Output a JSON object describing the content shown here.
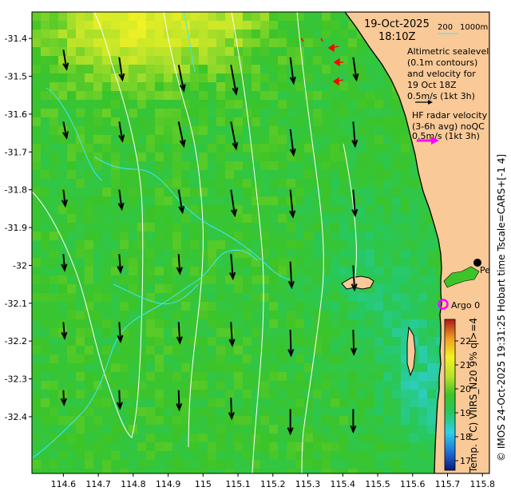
{
  "header": {
    "date": "19-Oct-2025",
    "time": "18:10Z",
    "scale_left": "200",
    "scale_right": "1000m"
  },
  "annotations": {
    "altimetric": [
      "Altimetric sealevel",
      "(0.1m contours)",
      "and velocity for",
      "19 Oct 18Z",
      "0.5m/s (1kt 3h)"
    ],
    "hf_radar": [
      "HF radar velocity",
      "(3-6h avg) noQC",
      "0.5m/s (1kt 3h)"
    ]
  },
  "places": {
    "city": "Perth",
    "argo": "Argo 0"
  },
  "side_caption": "© IMOS 24-Oct-2025 19:31:25 Hobart time Tscale=CARS+[-1 4]",
  "colorbar": {
    "label": "Temp. (°C) VIIRS_N20 9% ql>=4",
    "ticks": [
      "17",
      "18",
      "19",
      "20",
      "21",
      "22"
    ],
    "vmin": 16.6,
    "vmax": 22.9
  },
  "axes": {
    "x_ticks": [
      "114.6",
      "114.7",
      "114.8",
      "114.9",
      "115",
      "115.1",
      "115.2",
      "115.3",
      "115.4",
      "115.5",
      "115.6",
      "115.7",
      "115.8"
    ],
    "y_ticks": [
      "-31.4",
      "-31.5",
      "-31.6",
      "-31.7",
      "-31.8",
      "-31.9",
      "-32",
      "-32.1",
      "-32.2",
      "-32.3",
      "-32.4"
    ],
    "lon_range": [
      114.51,
      115.82
    ],
    "lat_range": [
      -32.55,
      -31.33
    ]
  },
  "colors": {
    "land": "#f9c997",
    "contour": "#ffffff",
    "isobath": "#3ee8ff",
    "hf_arrow": "#ff00ff",
    "argo": "#ff00ff",
    "wind_arrow": "#ff0000"
  },
  "velocity_arrows": [
    {
      "lon": 114.6,
      "lat": -31.43,
      "u": 0.05,
      "v": -0.3
    },
    {
      "lon": 114.76,
      "lat": -31.45,
      "u": 0.05,
      "v": -0.35
    },
    {
      "lon": 114.93,
      "lat": -31.47,
      "u": 0.08,
      "v": -0.4
    },
    {
      "lon": 115.08,
      "lat": -31.47,
      "u": 0.08,
      "v": -0.45
    },
    {
      "lon": 115.25,
      "lat": -31.45,
      "u": 0.05,
      "v": -0.4
    },
    {
      "lon": 115.43,
      "lat": -31.45,
      "u": 0.05,
      "v": -0.35
    },
    {
      "lon": 114.6,
      "lat": -31.62,
      "u": 0.05,
      "v": -0.25
    },
    {
      "lon": 114.76,
      "lat": -31.62,
      "u": 0.05,
      "v": -0.3
    },
    {
      "lon": 114.93,
      "lat": -31.62,
      "u": 0.08,
      "v": -0.38
    },
    {
      "lon": 115.08,
      "lat": -31.62,
      "u": 0.08,
      "v": -0.42
    },
    {
      "lon": 115.25,
      "lat": -31.64,
      "u": 0.05,
      "v": -0.4
    },
    {
      "lon": 115.43,
      "lat": -31.62,
      "u": 0.03,
      "v": -0.38
    },
    {
      "lon": 114.6,
      "lat": -31.8,
      "u": 0.03,
      "v": -0.25
    },
    {
      "lon": 114.76,
      "lat": -31.8,
      "u": 0.04,
      "v": -0.3
    },
    {
      "lon": 114.93,
      "lat": -31.8,
      "u": 0.06,
      "v": -0.35
    },
    {
      "lon": 115.08,
      "lat": -31.8,
      "u": 0.06,
      "v": -0.4
    },
    {
      "lon": 115.25,
      "lat": -31.8,
      "u": 0.04,
      "v": -0.42
    },
    {
      "lon": 115.43,
      "lat": -31.8,
      "u": 0.03,
      "v": -0.4
    },
    {
      "lon": 114.6,
      "lat": -31.97,
      "u": 0.02,
      "v": -0.25
    },
    {
      "lon": 114.76,
      "lat": -31.97,
      "u": 0.02,
      "v": -0.28
    },
    {
      "lon": 114.93,
      "lat": -31.97,
      "u": 0.02,
      "v": -0.3
    },
    {
      "lon": 115.08,
      "lat": -31.97,
      "u": 0.03,
      "v": -0.38
    },
    {
      "lon": 115.25,
      "lat": -31.99,
      "u": 0.02,
      "v": -0.4
    },
    {
      "lon": 115.43,
      "lat": -32.0,
      "u": 0.02,
      "v": -0.38
    },
    {
      "lon": 114.6,
      "lat": -32.15,
      "u": 0.02,
      "v": -0.25
    },
    {
      "lon": 114.76,
      "lat": -32.15,
      "u": 0.02,
      "v": -0.3
    },
    {
      "lon": 114.93,
      "lat": -32.15,
      "u": 0.02,
      "v": -0.32
    },
    {
      "lon": 115.08,
      "lat": -32.15,
      "u": 0.02,
      "v": -0.36
    },
    {
      "lon": 115.25,
      "lat": -32.17,
      "u": 0.01,
      "v": -0.4
    },
    {
      "lon": 115.43,
      "lat": -32.17,
      "u": 0.01,
      "v": -0.38
    },
    {
      "lon": 114.6,
      "lat": -32.33,
      "u": 0.01,
      "v": -0.22
    },
    {
      "lon": 114.76,
      "lat": -32.33,
      "u": 0.01,
      "v": -0.28
    },
    {
      "lon": 114.93,
      "lat": -32.33,
      "u": 0.01,
      "v": -0.3
    },
    {
      "lon": 115.08,
      "lat": -32.35,
      "u": 0.01,
      "v": -0.32
    },
    {
      "lon": 115.25,
      "lat": -32.38,
      "u": 0.0,
      "v": -0.38
    },
    {
      "lon": 115.43,
      "lat": -32.38,
      "u": 0.0,
      "v": -0.35
    }
  ]
}
